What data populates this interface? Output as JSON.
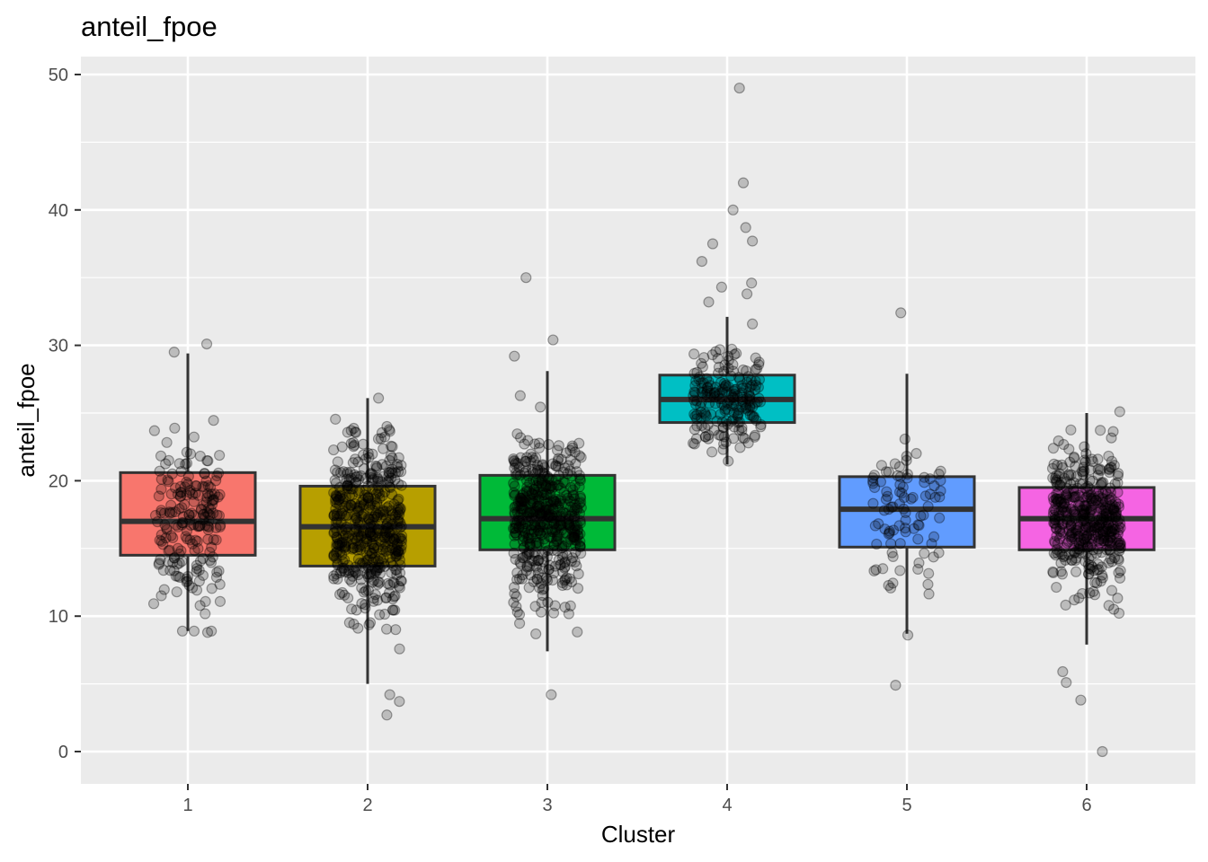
{
  "chart_data": {
    "type": "boxplot",
    "title": "anteil_fpoe",
    "xlabel": "Cluster",
    "ylabel": "anteil_fpoe",
    "ylim": [
      -2.5,
      52
    ],
    "yticks": [
      0,
      10,
      20,
      30,
      40,
      50
    ],
    "categories": [
      "1",
      "2",
      "3",
      "4",
      "5",
      "6"
    ],
    "colors": [
      "#F8766D",
      "#B79F00",
      "#00BA38",
      "#00BFC4",
      "#619CFF",
      "#F564E3"
    ],
    "grid": true,
    "legend": "none",
    "boxes": [
      {
        "cluster": "1",
        "whisker_low": 8.9,
        "q1": 14.5,
        "median": 17.0,
        "q3": 20.6,
        "whisker_high": 29.4,
        "n_points": 200,
        "extreme_points": [
          30.1,
          29.5,
          8.8
        ]
      },
      {
        "cluster": "2",
        "whisker_low": 5.0,
        "q1": 13.7,
        "median": 16.6,
        "q3": 19.6,
        "whisker_high": 26.1,
        "n_points": 500,
        "extreme_points": [
          2.7,
          3.7,
          4.2,
          26.1
        ]
      },
      {
        "cluster": "3",
        "whisker_low": 7.4,
        "q1": 14.9,
        "median": 17.2,
        "q3": 20.4,
        "whisker_high": 28.1,
        "n_points": 500,
        "extreme_points": [
          35.0,
          30.4,
          29.2,
          4.2
        ]
      },
      {
        "cluster": "4",
        "whisker_low": 21.2,
        "q1": 24.3,
        "median": 26.0,
        "q3": 27.8,
        "whisker_high": 32.1,
        "n_points": 200,
        "extreme_points": [
          49.0,
          42.0,
          40.0,
          38.7,
          37.7,
          37.5,
          36.2,
          34.6,
          34.3,
          33.8,
          33.2
        ]
      },
      {
        "cluster": "5",
        "whisker_low": 8.7,
        "q1": 15.1,
        "median": 17.9,
        "q3": 20.3,
        "whisker_high": 27.9,
        "n_points": 90,
        "extreme_points": [
          32.4,
          4.9,
          8.6
        ]
      },
      {
        "cluster": "6",
        "whisker_low": 7.9,
        "q1": 14.9,
        "median": 17.2,
        "q3": 19.5,
        "whisker_high": 25.0,
        "n_points": 450,
        "extreme_points": [
          0.0,
          3.8,
          5.1,
          5.9,
          25.1
        ]
      }
    ]
  }
}
